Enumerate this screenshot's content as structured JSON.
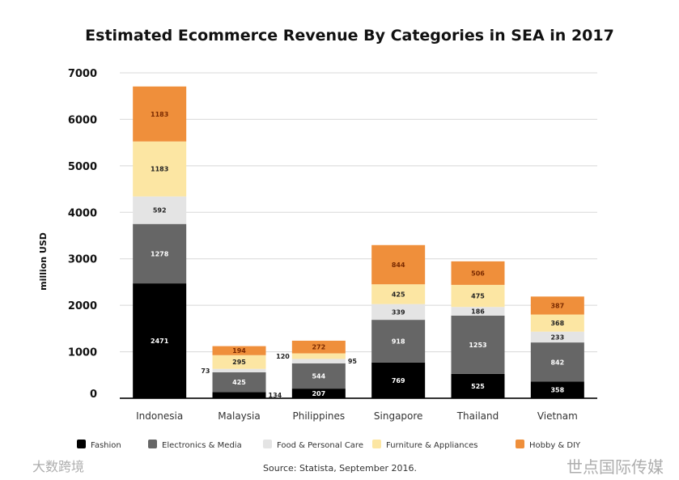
{
  "chart_data": {
    "type": "bar",
    "stacked": true,
    "title": "Estimated Ecommerce Revenue By Categories in SEA in 2017",
    "xlabel": "",
    "ylabel": "million USD",
    "ylim": [
      0,
      7000
    ],
    "yticks": [
      "0",
      "1000",
      "2000",
      "3000",
      "4000",
      "5000",
      "6000",
      "7000"
    ],
    "grid": true,
    "legend_position": "bottom",
    "categories": [
      "Indonesia",
      "Malaysia",
      "Philippines",
      "Singapore",
      "Thailand",
      "Vietnam"
    ],
    "series": [
      {
        "name": "Fashion",
        "color": "#000000",
        "label_color": "#ffffff",
        "values": [
          2471,
          134,
          207,
          769,
          525,
          358
        ]
      },
      {
        "name": "Electronics & Media",
        "color": "#666666",
        "label_color": "#ffffff",
        "values": [
          1278,
          425,
          544,
          918,
          1253,
          842
        ]
      },
      {
        "name": "Food & Personal Care",
        "color": "#e4e4e4",
        "label_color": "#222222",
        "values": [
          592,
          73,
          95,
          339,
          186,
          233
        ]
      },
      {
        "name": "Furniture & Appliances",
        "color": "#fce6a3",
        "label_color": "#222222",
        "values": [
          1183,
          295,
          120,
          425,
          475,
          368
        ]
      },
      {
        "name": "Hobby & DIY",
        "color": "#ef8f3b",
        "label_color": "#7a2a00",
        "values": [
          1183,
          194,
          272,
          844,
          506,
          387
        ]
      }
    ],
    "source": "Source: Statista, September 2016."
  },
  "watermarks": [
    "大数跨境",
    "世点国际传媒"
  ]
}
